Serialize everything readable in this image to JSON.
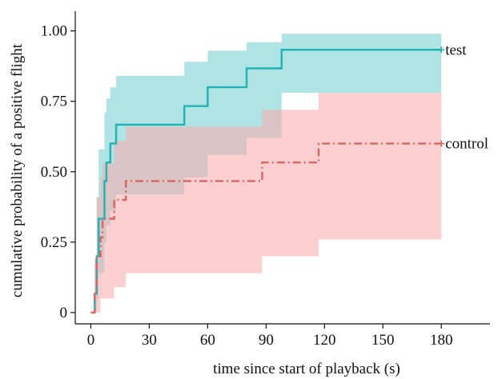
{
  "chart_data": {
    "type": "line",
    "subtype": "kaplan-meier step curves with confidence bands",
    "xlabel": "time since start of playback (s)",
    "ylabel": "cumulative probability of a positive flight",
    "xlim": [
      -8,
      205
    ],
    "ylim": [
      -0.04,
      1.07
    ],
    "xticks": [
      0,
      30,
      60,
      90,
      120,
      150,
      180
    ],
    "xtick_labels": [
      "0",
      "30",
      "60",
      "90",
      "120",
      "150",
      "180"
    ],
    "yticks": [
      0,
      0.25,
      0.5,
      0.75,
      1.0
    ],
    "ytick_labels": [
      "0",
      "0.25",
      "0.50",
      "0.75",
      "1.00"
    ],
    "grid": false,
    "series": [
      {
        "name": "test",
        "color": "#20b2b5",
        "band_color": "#7fd3d3",
        "line_style": "solid",
        "end_marker": "+",
        "steps": [
          [
            0,
            0
          ],
          [
            2,
            0.067
          ],
          [
            3,
            0.2
          ],
          [
            4,
            0.333
          ],
          [
            7,
            0.467
          ],
          [
            8,
            0.533
          ],
          [
            10,
            0.6
          ],
          [
            13,
            0.667
          ],
          [
            48,
            0.733
          ],
          [
            60,
            0.8
          ],
          [
            80,
            0.867
          ],
          [
            98,
            0.933
          ],
          [
            180,
            0.933
          ]
        ],
        "ci_steps": [
          [
            0,
            0,
            0
          ],
          [
            2,
            0,
            0.19
          ],
          [
            3,
            0.05,
            0.41
          ],
          [
            4,
            0.14,
            0.58
          ],
          [
            7,
            0.25,
            0.71
          ],
          [
            8,
            0.31,
            0.76
          ],
          [
            10,
            0.36,
            0.8
          ],
          [
            13,
            0.42,
            0.84
          ],
          [
            48,
            0.48,
            0.89
          ],
          [
            60,
            0.56,
            0.93
          ],
          [
            80,
            0.62,
            0.96
          ],
          [
            98,
            0.78,
            0.99
          ],
          [
            180,
            0.78,
            0.99
          ]
        ]
      },
      {
        "name": "control",
        "color": "#d9655f",
        "band_color": "#f9a9a9",
        "line_style": "dashdot",
        "end_marker": "+",
        "steps": [
          [
            0,
            0
          ],
          [
            2,
            0.067
          ],
          [
            3,
            0.2
          ],
          [
            5,
            0.267
          ],
          [
            6,
            0.333
          ],
          [
            12,
            0.4
          ],
          [
            18,
            0.467
          ],
          [
            88,
            0.533
          ],
          [
            117,
            0.6
          ],
          [
            180,
            0.6
          ]
        ],
        "ci_steps": [
          [
            0,
            0,
            0
          ],
          [
            2,
            0,
            0.19
          ],
          [
            3,
            0,
            0.41
          ],
          [
            5,
            0.05,
            0.48
          ],
          [
            6,
            0.05,
            0.53
          ],
          [
            12,
            0.09,
            0.61
          ],
          [
            18,
            0.14,
            0.66
          ],
          [
            88,
            0.2,
            0.72
          ],
          [
            117,
            0.26,
            0.78
          ],
          [
            180,
            0.26,
            0.78
          ]
        ]
      }
    ]
  }
}
